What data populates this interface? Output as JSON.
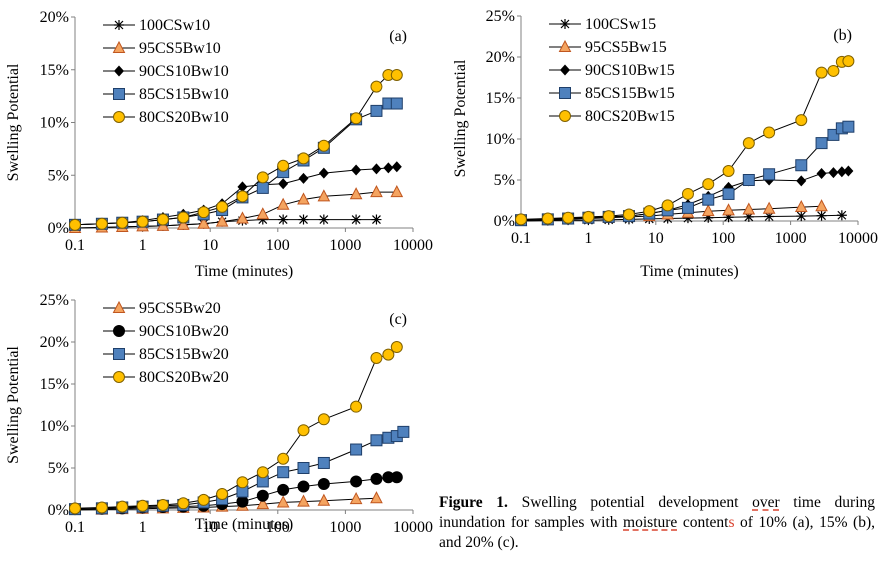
{
  "colors": {
    "axis": "#808080",
    "line": "#000000",
    "triangle": "#f4a460",
    "triangle_stroke": "#c0561f",
    "square": "#4f81bd",
    "square_stroke": "#1f3f6a",
    "circle_yellow": "#ffc000",
    "circle_yellow_stroke": "#7f6000",
    "diamond": "#000000",
    "caption_accent": "#d9432f"
  },
  "chart_data": [
    {
      "panel_label": "(a)",
      "type": "line",
      "xscale": "log",
      "xlabel": "Time (minutes)",
      "ylabel": "Swelling Potential",
      "xlim": [
        0.1,
        10000
      ],
      "ylim": [
        0,
        20
      ],
      "xticks": [
        "0.1",
        "1",
        "10",
        "100",
        "1000",
        "10000"
      ],
      "yticks": [
        "0%",
        "5%",
        "10%",
        "15%",
        "20%"
      ],
      "legend": "top-left",
      "x": [
        0.1,
        0.25,
        0.5,
        1,
        2,
        4,
        8,
        15,
        30,
        60,
        120,
        240,
        480,
        1440,
        2880
      ],
      "series": [
        {
          "name": "100CSw10",
          "marker": "star",
          "values": [
            0,
            0.05,
            0.1,
            0.15,
            0.2,
            0.3,
            0.4,
            0.6,
            0.7,
            0.8,
            0.8,
            0.8,
            0.8,
            0.8,
            0.8
          ]
        },
        {
          "name": "95CS5Bw10",
          "marker": "triangle",
          "x": [
            0.1,
            0.25,
            0.5,
            1,
            2,
            4,
            8,
            15,
            30,
            60,
            120,
            240,
            480,
            1440,
            2880,
            5760
          ],
          "values": [
            0,
            0.05,
            0.1,
            0.15,
            0.2,
            0.3,
            0.4,
            0.6,
            0.9,
            1.3,
            2.2,
            2.7,
            3.0,
            3.2,
            3.4,
            3.4
          ]
        },
        {
          "name": "90CS10Bw10",
          "marker": "diamond",
          "x": [
            0.1,
            0.25,
            0.5,
            1,
            2,
            4,
            8,
            15,
            30,
            60,
            120,
            240,
            480,
            1440,
            2880,
            4320,
            5760
          ],
          "values": [
            0.3,
            0.4,
            0.5,
            0.7,
            1.0,
            1.3,
            1.7,
            2.3,
            3.9,
            4.1,
            4.2,
            4.7,
            5.2,
            5.5,
            5.6,
            5.7,
            5.8
          ]
        },
        {
          "name": "85CS15Bw10",
          "marker": "square",
          "x": [
            0.1,
            0.25,
            0.5,
            1,
            2,
            4,
            8,
            15,
            30,
            60,
            120,
            240,
            480,
            1440,
            2880,
            4320,
            5760
          ],
          "values": [
            0.3,
            0.4,
            0.5,
            0.6,
            0.8,
            1.0,
            1.3,
            1.7,
            2.9,
            3.8,
            5.3,
            6.4,
            7.6,
            10.3,
            11.1,
            11.8,
            11.8
          ]
        },
        {
          "name": "80CS20Bw10",
          "marker": "circle",
          "x": [
            0.1,
            0.25,
            0.5,
            1,
            2,
            4,
            8,
            15,
            30,
            60,
            120,
            240,
            480,
            1440,
            2880,
            4320,
            5760
          ],
          "values": [
            0.3,
            0.4,
            0.5,
            0.6,
            0.8,
            1.0,
            1.5,
            2.0,
            3.0,
            4.8,
            5.9,
            6.6,
            7.8,
            10.4,
            13.4,
            14.5,
            14.5
          ]
        }
      ]
    },
    {
      "panel_label": "(b)",
      "type": "line",
      "xscale": "log",
      "xlabel": "Time (minutes)",
      "ylabel": "Swelling Potential",
      "xlim": [
        0.1,
        10000
      ],
      "ylim": [
        0,
        25
      ],
      "xticks": [
        "0.1",
        "1",
        "10",
        "100",
        "1000",
        "10000"
      ],
      "yticks": [
        "0%",
        "5%",
        "10%",
        "15%",
        "20%",
        "25%"
      ],
      "legend": "top-left",
      "series": [
        {
          "name": "100CSw15",
          "marker": "star",
          "x": [
            0.1,
            0.25,
            0.5,
            1,
            2,
            4,
            8,
            15,
            30,
            60,
            120,
            240,
            480,
            1440,
            2880,
            5760
          ],
          "values": [
            0,
            0.05,
            0.1,
            0.1,
            0.15,
            0.2,
            0.25,
            0.3,
            0.35,
            0.4,
            0.45,
            0.5,
            0.55,
            0.6,
            0.65,
            0.7
          ]
        },
        {
          "name": "95CS5Bw15",
          "marker": "triangle",
          "x": [
            0.1,
            0.25,
            0.5,
            1,
            2,
            4,
            8,
            15,
            30,
            60,
            120,
            240,
            480,
            1440,
            2880
          ],
          "values": [
            0,
            0.1,
            0.2,
            0.3,
            0.4,
            0.5,
            0.6,
            0.8,
            1.0,
            1.2,
            1.3,
            1.4,
            1.5,
            1.7,
            1.8
          ]
        },
        {
          "name": "90CS10Bw15",
          "marker": "diamond",
          "x": [
            0.1,
            0.25,
            0.5,
            1,
            2,
            4,
            8,
            15,
            30,
            60,
            120,
            240,
            480,
            1440,
            2880,
            4320,
            5760,
            7200
          ],
          "values": [
            0.1,
            0.2,
            0.3,
            0.4,
            0.5,
            0.6,
            0.9,
            1.3,
            2.0,
            3.0,
            4.1,
            4.9,
            5.0,
            4.9,
            5.8,
            5.9,
            6.0,
            6.1
          ]
        },
        {
          "name": "85CS15Bw15",
          "marker": "square",
          "x": [
            0.1,
            0.25,
            0.5,
            1,
            2,
            4,
            8,
            15,
            30,
            60,
            120,
            240,
            480,
            1440,
            2880,
            4320,
            5760,
            7200
          ],
          "values": [
            0.1,
            0.2,
            0.3,
            0.4,
            0.5,
            0.6,
            0.9,
            1.3,
            1.6,
            2.6,
            3.3,
            5.0,
            5.7,
            6.8,
            9.5,
            10.5,
            11.3,
            11.5
          ]
        },
        {
          "name": "80CS20Bw15",
          "marker": "circle",
          "x": [
            0.1,
            0.25,
            0.5,
            1,
            2,
            4,
            8,
            15,
            30,
            60,
            120,
            240,
            480,
            1440,
            2880,
            4320,
            5760,
            7200
          ],
          "values": [
            0.2,
            0.3,
            0.4,
            0.5,
            0.6,
            0.8,
            1.2,
            1.9,
            3.3,
            4.5,
            6.1,
            9.5,
            10.8,
            12.3,
            18.1,
            18.3,
            19.4,
            19.5
          ]
        }
      ]
    },
    {
      "panel_label": "(c)",
      "type": "line",
      "xscale": "log",
      "xlabel": "Time (minutes)",
      "ylabel": "Swelling Potential",
      "xlim": [
        0.1,
        10000
      ],
      "ylim": [
        0,
        25
      ],
      "xticks": [
        "0.1",
        "1",
        "10",
        "100",
        "1000",
        "10000"
      ],
      "yticks": [
        "0%",
        "5%",
        "10%",
        "15%",
        "20%",
        "25%"
      ],
      "legend": "top-left",
      "series": [
        {
          "name": "95CS5Bw20",
          "marker": "triangle",
          "x": [
            0.1,
            0.25,
            0.5,
            1,
            2,
            4,
            8,
            15,
            30,
            60,
            120,
            240,
            480,
            1440,
            2880
          ],
          "values": [
            0,
            0.05,
            0.1,
            0.15,
            0.2,
            0.25,
            0.3,
            0.4,
            0.5,
            0.7,
            0.9,
            1.0,
            1.1,
            1.3,
            1.4
          ]
        },
        {
          "name": "90CS10Bw20",
          "marker": "circle-black",
          "x": [
            0.1,
            0.25,
            0.5,
            1,
            2,
            4,
            8,
            15,
            30,
            60,
            120,
            240,
            480,
            1440,
            2880,
            4320,
            5760
          ],
          "values": [
            0.1,
            0.15,
            0.2,
            0.3,
            0.35,
            0.4,
            0.5,
            0.7,
            1.0,
            1.7,
            2.4,
            2.8,
            3.1,
            3.4,
            3.7,
            3.9,
            3.9
          ]
        },
        {
          "name": "85CS15Bw20",
          "marker": "square",
          "x": [
            0.1,
            0.25,
            0.5,
            1,
            2,
            4,
            8,
            15,
            30,
            60,
            120,
            240,
            480,
            1440,
            2880,
            4320,
            5760,
            7200
          ],
          "values": [
            0.1,
            0.2,
            0.3,
            0.4,
            0.5,
            0.6,
            0.9,
            1.3,
            2.2,
            3.4,
            4.5,
            5.0,
            5.6,
            7.2,
            8.3,
            8.6,
            8.8,
            9.3
          ]
        },
        {
          "name": "80CS20Bw20",
          "marker": "circle",
          "x": [
            0.1,
            0.25,
            0.5,
            1,
            2,
            4,
            8,
            15,
            30,
            60,
            120,
            240,
            480,
            1440,
            2880,
            4320,
            5760
          ],
          "values": [
            0.2,
            0.3,
            0.4,
            0.5,
            0.6,
            0.8,
            1.2,
            1.9,
            3.3,
            4.5,
            6.1,
            9.5,
            10.8,
            12.3,
            18.1,
            18.5,
            19.4
          ]
        }
      ]
    }
  ],
  "caption": {
    "label": "Figure 1.",
    "part1": " Swelling potential development ",
    "over": "over",
    "part2": " time during inundation for samples with ",
    "moisture": "moisture",
    "part3": " content",
    "s": "s",
    "part4": " of 10% (a), 15% (b), and 20% (c)."
  }
}
